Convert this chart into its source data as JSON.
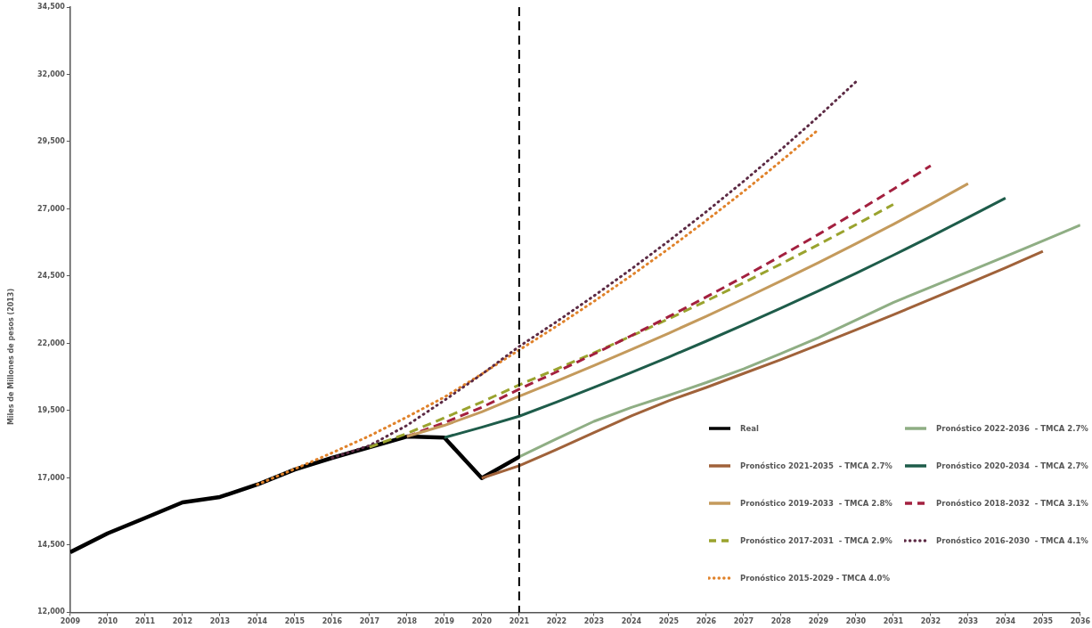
{
  "chart_data": {
    "type": "line",
    "ylabel": "Miles de Millones de pesos (2013)",
    "xlim": [
      2009,
      2036
    ],
    "xticks": [
      2009,
      2010,
      2011,
      2012,
      2013,
      2014,
      2015,
      2016,
      2017,
      2018,
      2019,
      2020,
      2021,
      2022,
      2023,
      2024,
      2025,
      2026,
      2027,
      2028,
      2029,
      2030,
      2031,
      2032,
      2033,
      2034,
      2035,
      2036
    ],
    "ylim": [
      12000,
      34500
    ],
    "yticks": [
      {
        "value": 12000,
        "label": "12,000"
      },
      {
        "value": 14500,
        "label": "14,500"
      },
      {
        "value": 17000,
        "label": "17,000"
      },
      {
        "value": 19500,
        "label": "19,500"
      },
      {
        "value": 22000,
        "label": "22,000"
      },
      {
        "value": 24500,
        "label": "24,500"
      },
      {
        "value": 27000,
        "label": "27,000"
      },
      {
        "value": 29500,
        "label": "29,500"
      },
      {
        "value": 32000,
        "label": "32,000"
      },
      {
        "value": 34500,
        "label": "34,500"
      }
    ],
    "grid": false,
    "legend": "bottom right",
    "marker": "none",
    "ref_lines": [
      {
        "axis": "x",
        "value": 2021,
        "color": "#000000",
        "line_style": "dashed"
      }
    ],
    "series": [
      {
        "name": "Real",
        "color": "#000000",
        "line_style": "solid",
        "x": [
          2009,
          2010,
          2011,
          2012,
          2013,
          2014,
          2015,
          2016,
          2017,
          2018,
          2019,
          2020,
          2021
        ],
        "values": [
          14236,
          14937,
          15506,
          16088,
          16287,
          16750,
          17305,
          17742,
          18139,
          18536,
          18496,
          16988,
          17781
        ]
      },
      {
        "name": "Pronóstico 2022-2036  - TMCA 2.7%",
        "color": "#8fae84",
        "line_style": "solid",
        "x": [
          2021,
          2022,
          2023,
          2024,
          2025,
          2026,
          2027,
          2028,
          2029,
          2030,
          2031,
          2032,
          2033,
          2034,
          2035,
          2036
        ],
        "values": [
          17781,
          18450,
          19100,
          19620,
          20070,
          20540,
          21050,
          21620,
          22210,
          22860,
          23520,
          24090,
          24660,
          25230,
          25810,
          26396
        ]
      },
      {
        "name": "Pronóstico 2021-2035  - TMCA 2.7%",
        "color": "#a0623a",
        "line_style": "solid",
        "x": [
          2020,
          2021,
          2022,
          2023,
          2024,
          2025,
          2026,
          2027,
          2028,
          2029,
          2030,
          2031,
          2032,
          2033,
          2034,
          2035
        ],
        "values": [
          16988,
          17451,
          18050,
          18680,
          19300,
          19868,
          20360,
          20880,
          21400,
          21944,
          22500,
          23060,
          23640,
          24220,
          24810,
          25425
        ]
      },
      {
        "name": "Pronóstico 2020-2034  - TMCA 2.7%",
        "color": "#1e5c4a",
        "line_style": "solid",
        "x": [
          2019,
          2020,
          2021,
          2022,
          2023,
          2024,
          2025,
          2026,
          2027,
          2028,
          2029,
          2030,
          2031,
          2032,
          2033,
          2034
        ],
        "values": [
          18496,
          18880,
          19290,
          19818,
          20361,
          20919,
          21492,
          22081,
          22686,
          23308,
          23946,
          24603,
          25277,
          25969,
          26681,
          27400
        ]
      },
      {
        "name": "Pronóstico 2019-2033  - TMCA 2.8%",
        "color": "#c49a5c",
        "line_style": "solid",
        "x": [
          2018,
          2019,
          2020,
          2021,
          2022,
          2023,
          2024,
          2025,
          2026,
          2027,
          2028,
          2029,
          2030,
          2031,
          2032,
          2033
        ],
        "values": [
          18536,
          18950,
          19450,
          20030,
          20593,
          21172,
          21767,
          22378,
          23007,
          23654,
          24318,
          25002,
          25704,
          26426,
          27169,
          27937
        ]
      },
      {
        "name": "Pronóstico 2018-2032  - TMCA 3.1%",
        "color": "#a3203f",
        "line_style": "dashed",
        "x": [
          2018,
          2019,
          2020,
          2021,
          2022,
          2023,
          2024,
          2025,
          2026,
          2027,
          2028,
          2029,
          2030,
          2031,
          2032
        ],
        "values": [
          18536,
          19050,
          19620,
          20295,
          20938,
          21602,
          22287,
          22993,
          23722,
          24474,
          25250,
          26050,
          26876,
          27728,
          28606
        ]
      },
      {
        "name": "Pronóstico 2017-2031  - TMCA 2.9%",
        "color": "#9aa32e",
        "line_style": "dashed",
        "x": [
          2017,
          2018,
          2019,
          2020,
          2021,
          2022,
          2023,
          2024,
          2025,
          2026,
          2027,
          2028,
          2029,
          2030,
          2031
        ],
        "values": [
          18139,
          18650,
          19230,
          19820,
          20454,
          21043,
          21649,
          22273,
          22914,
          23574,
          24253,
          24952,
          25671,
          26410,
          27166
        ]
      },
      {
        "name": "Pronóstico 2016-2030  - TMCA 4.1%",
        "color": "#5c2a44",
        "line_style": "dotted",
        "x": [
          2016,
          2017,
          2018,
          2019,
          2020,
          2021,
          2022,
          2023,
          2024,
          2025,
          2026,
          2027,
          2028,
          2029,
          2030
        ],
        "values": [
          17742,
          18200,
          18950,
          19880,
          20850,
          21883,
          22804,
          23764,
          24764,
          25806,
          26892,
          28024,
          29203,
          30432,
          31720
        ]
      },
      {
        "name": "Pronóstico 2015-2029 - TMCA 4.0%",
        "color": "#e0822a",
        "line_style": "dotted",
        "x": [
          2014,
          2015,
          2016,
          2017,
          2018,
          2019,
          2020,
          2021,
          2022,
          2023,
          2024,
          2025,
          2026,
          2027,
          2028,
          2029
        ],
        "values": [
          16750,
          17330,
          17930,
          18560,
          19260,
          20000,
          20860,
          21751,
          22638,
          23561,
          24522,
          25522,
          26563,
          27646,
          28773,
          29946
        ]
      }
    ]
  }
}
